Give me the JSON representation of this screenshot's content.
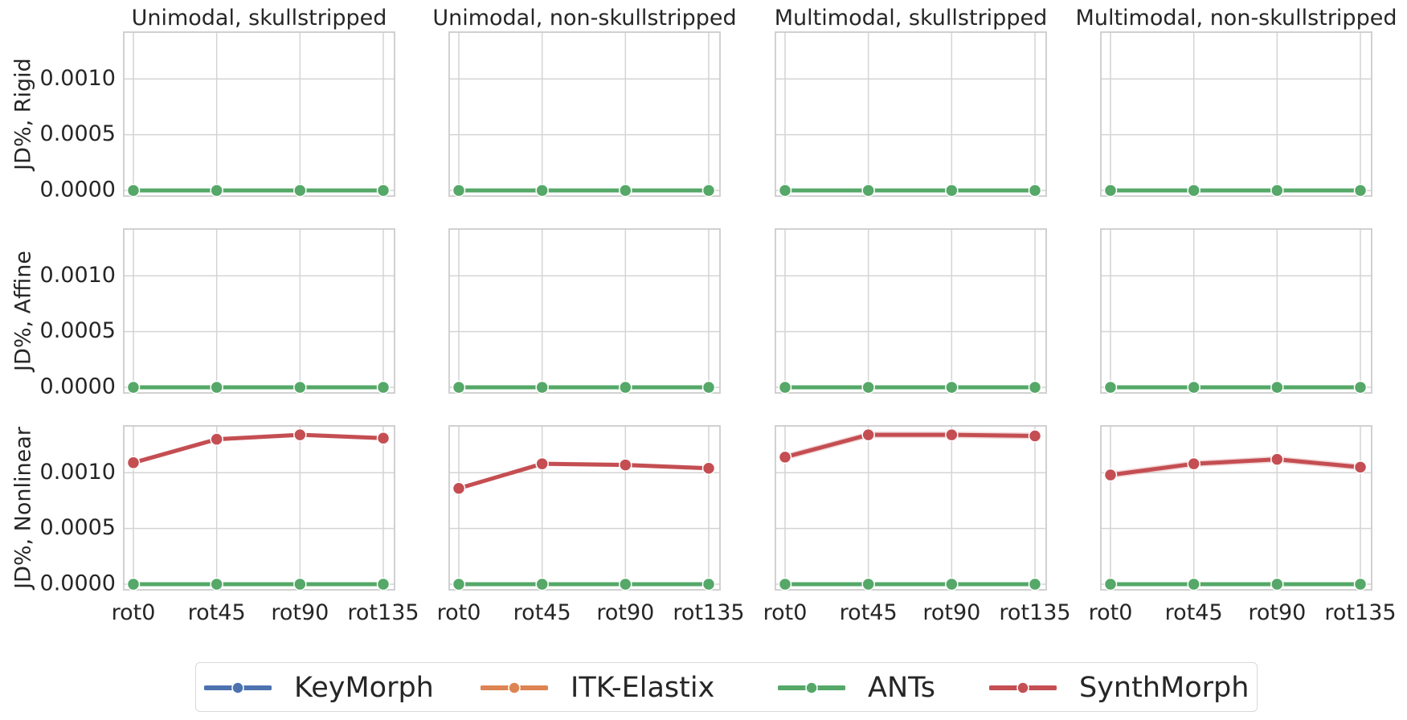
{
  "chart_data": {
    "type": "line",
    "layout": "grid 3 rows x 4 columns, shared axes",
    "columns": [
      "Unimodal, skullstripped",
      "Unimodal, non-skullstripped",
      "Multimodal, skullstripped",
      "Multimodal, non-skullstripped"
    ],
    "rows": [
      "JD%, Rigid",
      "JD%, Affine",
      "JD%, Nonlinear"
    ],
    "categories": [
      "rot0",
      "rot45",
      "rot90",
      "rot135"
    ],
    "ylim": [
      -5e-05,
      0.00142
    ],
    "yticks": [
      0.0,
      0.0005,
      0.001
    ],
    "ytick_labels": [
      "0.0000",
      "0.0005",
      "0.0010"
    ],
    "grid": true,
    "legend_placement": "bottom-center",
    "series_styles": [
      {
        "name": "KeyMorph",
        "color": "#4c72b0"
      },
      {
        "name": "ITK-Elastix",
        "color": "#dd8452"
      },
      {
        "name": "ANTs",
        "color": "#55a868"
      },
      {
        "name": "SynthMorph",
        "color": "#c44e52"
      }
    ],
    "panels": [
      {
        "row": 0,
        "col": 0,
        "series": [
          {
            "name": "ANTs",
            "values": [
              0,
              0,
              0,
              0
            ]
          }
        ]
      },
      {
        "row": 0,
        "col": 1,
        "series": [
          {
            "name": "ANTs",
            "values": [
              0,
              0,
              0,
              0
            ]
          }
        ]
      },
      {
        "row": 0,
        "col": 2,
        "series": [
          {
            "name": "ANTs",
            "values": [
              0,
              0,
              0,
              0
            ]
          }
        ]
      },
      {
        "row": 0,
        "col": 3,
        "series": [
          {
            "name": "ANTs",
            "values": [
              0,
              0,
              0,
              0
            ]
          }
        ]
      },
      {
        "row": 1,
        "col": 0,
        "series": [
          {
            "name": "ANTs",
            "values": [
              0,
              0,
              0,
              0
            ]
          }
        ]
      },
      {
        "row": 1,
        "col": 1,
        "series": [
          {
            "name": "ANTs",
            "values": [
              0,
              0,
              0,
              0
            ]
          }
        ]
      },
      {
        "row": 1,
        "col": 2,
        "series": [
          {
            "name": "ANTs",
            "values": [
              0,
              0,
              0,
              0
            ]
          }
        ]
      },
      {
        "row": 1,
        "col": 3,
        "series": [
          {
            "name": "ANTs",
            "values": [
              0,
              0,
              0,
              0
            ]
          }
        ]
      },
      {
        "row": 2,
        "col": 0,
        "series": [
          {
            "name": "ANTs",
            "values": [
              0,
              0,
              0,
              0
            ]
          },
          {
            "name": "SynthMorph",
            "values": [
              0.00109,
              0.0013,
              0.00134,
              0.00131
            ],
            "ci_halfwidth": 2e-05
          }
        ]
      },
      {
        "row": 2,
        "col": 1,
        "series": [
          {
            "name": "ANTs",
            "values": [
              0,
              0,
              0,
              0
            ]
          },
          {
            "name": "SynthMorph",
            "values": [
              0.00086,
              0.00108,
              0.00107,
              0.00104
            ],
            "ci_halfwidth": 2e-05
          }
        ]
      },
      {
        "row": 2,
        "col": 2,
        "series": [
          {
            "name": "ANTs",
            "values": [
              0,
              0,
              0,
              0
            ]
          },
          {
            "name": "SynthMorph",
            "values": [
              0.00114,
              0.00134,
              0.00134,
              0.00133
            ],
            "ci_halfwidth": 3e-05
          }
        ]
      },
      {
        "row": 2,
        "col": 3,
        "series": [
          {
            "name": "ANTs",
            "values": [
              0,
              0,
              0,
              0
            ]
          },
          {
            "name": "SynthMorph",
            "values": [
              0.00098,
              0.00108,
              0.00112,
              0.00105
            ],
            "ci_halfwidth": 3e-05
          }
        ]
      }
    ]
  }
}
